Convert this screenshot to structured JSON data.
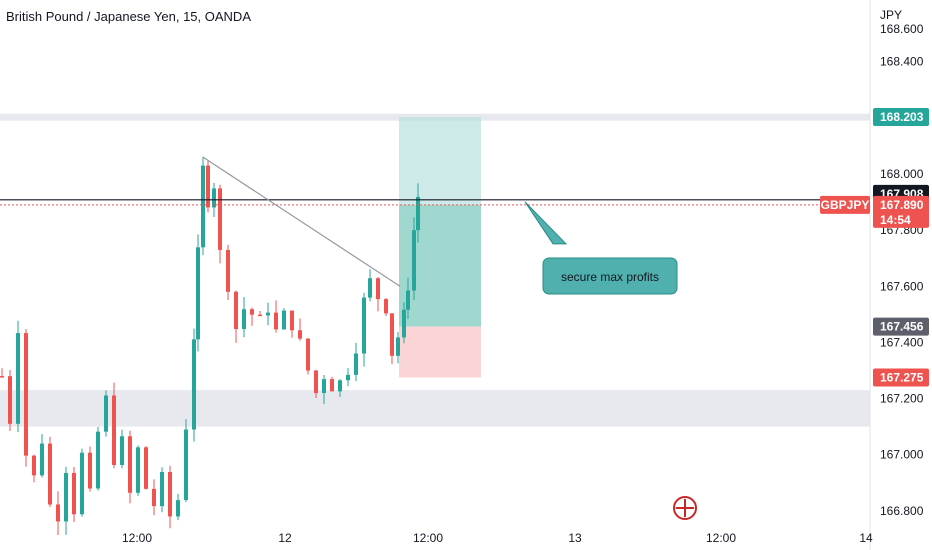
{
  "title": "British Pound / Japanese Yen, 15, OANDA",
  "colors": {
    "up": "#26a69a",
    "down": "#ef5350",
    "zone": "#e8e9ee",
    "target": "#b2dfdb",
    "stop": "#fbd5d6",
    "note_bg": "#4fb0ad",
    "note_border": "#2a8c88"
  },
  "chart_data": {
    "type": "candlestick",
    "symbol": "GBPJPY",
    "currency_label": "JPY",
    "ylim": [
      166.76,
      168.62
    ],
    "y_ticks": [
      "168.600",
      "168.400",
      "168.000",
      "167.800",
      "167.600",
      "167.400",
      "167.200",
      "167.000",
      "166.800"
    ],
    "x_ticks": [
      "12:00",
      "12",
      "12:00",
      "13",
      "12:00",
      "14"
    ],
    "price_tags": [
      {
        "value": "168.203",
        "kind": "target"
      },
      {
        "value": "167.908",
        "kind": "line"
      },
      {
        "value": "167.890",
        "kind": "last",
        "sub": "14:54",
        "symbol": "GBPJPY"
      },
      {
        "value": "167.456",
        "kind": "entry"
      },
      {
        "value": "167.275",
        "kind": "stop"
      }
    ],
    "horizontal_line": 167.908,
    "current_price": 167.89,
    "zones": [
      {
        "from": 168.19,
        "to": 168.215
      },
      {
        "from": 167.1,
        "to": 167.23
      }
    ],
    "position": {
      "entry": 167.456,
      "target": 168.203,
      "stop": 167.275
    },
    "trendline": [
      {
        "price": 168.06
      },
      {
        "price": 167.6
      }
    ],
    "annotation": "secure max profits"
  }
}
